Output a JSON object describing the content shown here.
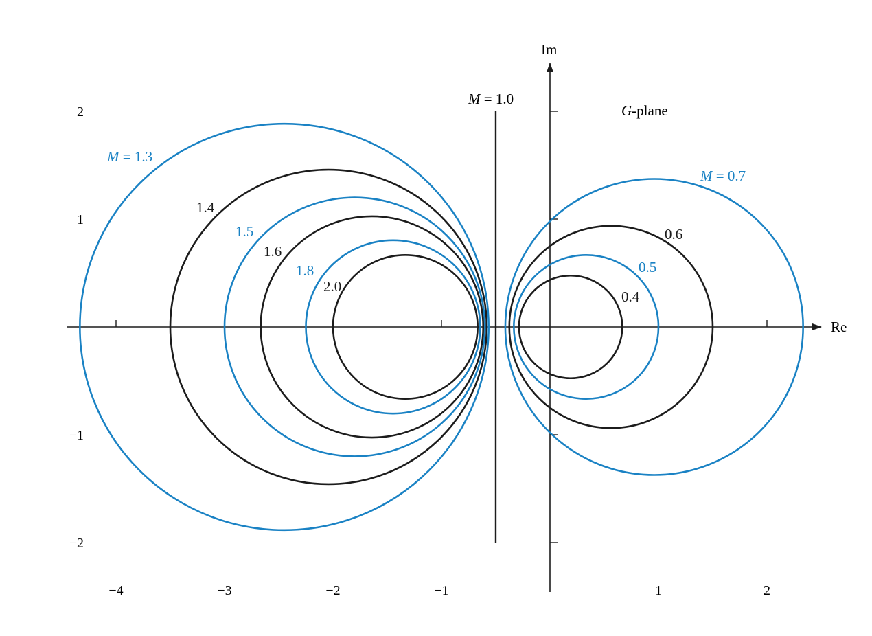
{
  "figure": {
    "plane_label_prefix": "G",
    "plane_label_suffix": "-plane",
    "axis_labels": {
      "x": "Re",
      "y": "Im"
    },
    "x_ticks": [
      {
        "value": -4,
        "label": "−4"
      },
      {
        "value": -3,
        "label": "−3"
      },
      {
        "value": -2,
        "label": "−2"
      },
      {
        "value": -1,
        "label": "−1"
      },
      {
        "value": 1,
        "label": "1"
      },
      {
        "value": 2,
        "label": "2"
      }
    ],
    "y_ticks": [
      {
        "value": 2,
        "label": "2"
      },
      {
        "value": 1,
        "label": "1"
      },
      {
        "value": -1,
        "label": "−1"
      },
      {
        "value": -2,
        "label": "−2"
      }
    ],
    "x_range": [
      -4.25,
      2.25
    ],
    "y_range": [
      -2.4,
      2.4
    ],
    "colors": {
      "black": "#1c1c1c",
      "blue": "#1a82c4"
    },
    "contours": [
      {
        "M": 1.3,
        "label": "M = 1.3",
        "color": "blue"
      },
      {
        "M": 1.4,
        "label": "1.4",
        "color": "black"
      },
      {
        "M": 1.5,
        "label": "1.5",
        "color": "blue"
      },
      {
        "M": 1.6,
        "label": "1.6",
        "color": "black"
      },
      {
        "M": 1.8,
        "label": "1.8",
        "color": "blue"
      },
      {
        "M": 2.0,
        "label": "2.0",
        "color": "black"
      },
      {
        "M": 0.7,
        "label": "M = 0.7",
        "color": "blue"
      },
      {
        "M": 0.6,
        "label": "0.6",
        "color": "black"
      },
      {
        "M": 0.5,
        "label": "0.5",
        "color": "blue"
      },
      {
        "M": 0.4,
        "label": "0.4",
        "color": "black"
      }
    ],
    "m1_line": {
      "x": -0.5,
      "label": "M = 1.0"
    }
  }
}
